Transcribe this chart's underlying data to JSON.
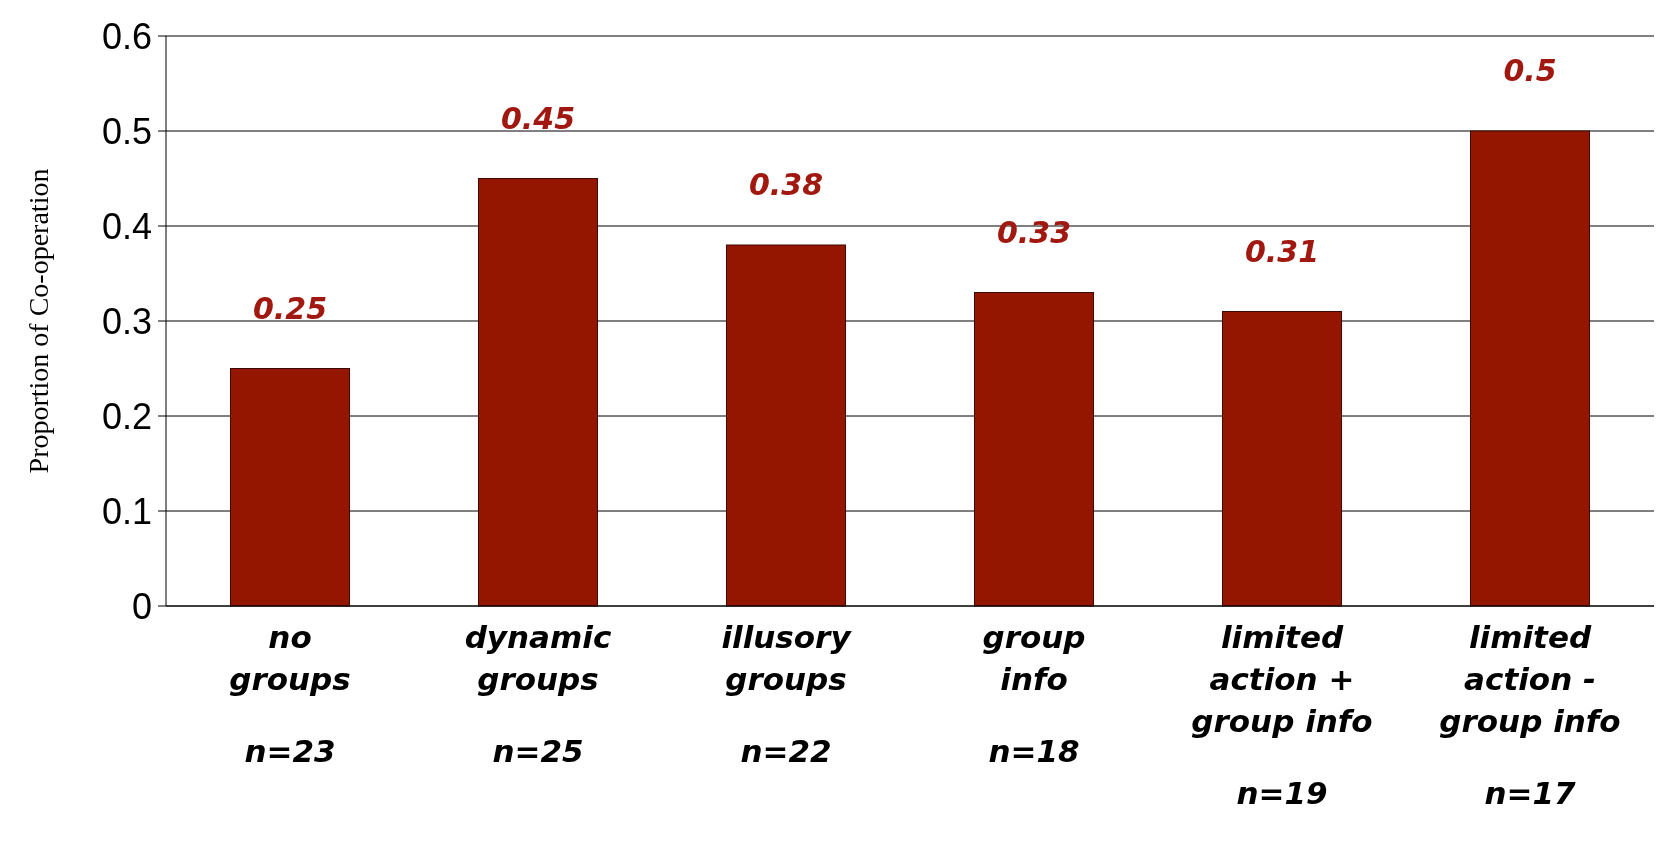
{
  "chart_data": {
    "type": "bar",
    "ylabel": "Proportion of Co-operation",
    "categories": [
      "no\ngroups\nn=23",
      "dynamic\ngroups\nn=25",
      "illusory\ngroups\nn=22",
      "group\ninfo\nn=18",
      "limited\naction +\ngroup info\nn=19",
      "limited\naction -\ngroup info\nn=17"
    ],
    "values": [
      0.25,
      0.45,
      0.38,
      0.33,
      0.31,
      0.5
    ],
    "color": "#941600",
    "ylim": [
      0,
      0.6
    ],
    "yticks": [
      0,
      0.1,
      0.2,
      0.3,
      0.4,
      0.5,
      0.6
    ],
    "grid": "y",
    "data_labels": true
  }
}
